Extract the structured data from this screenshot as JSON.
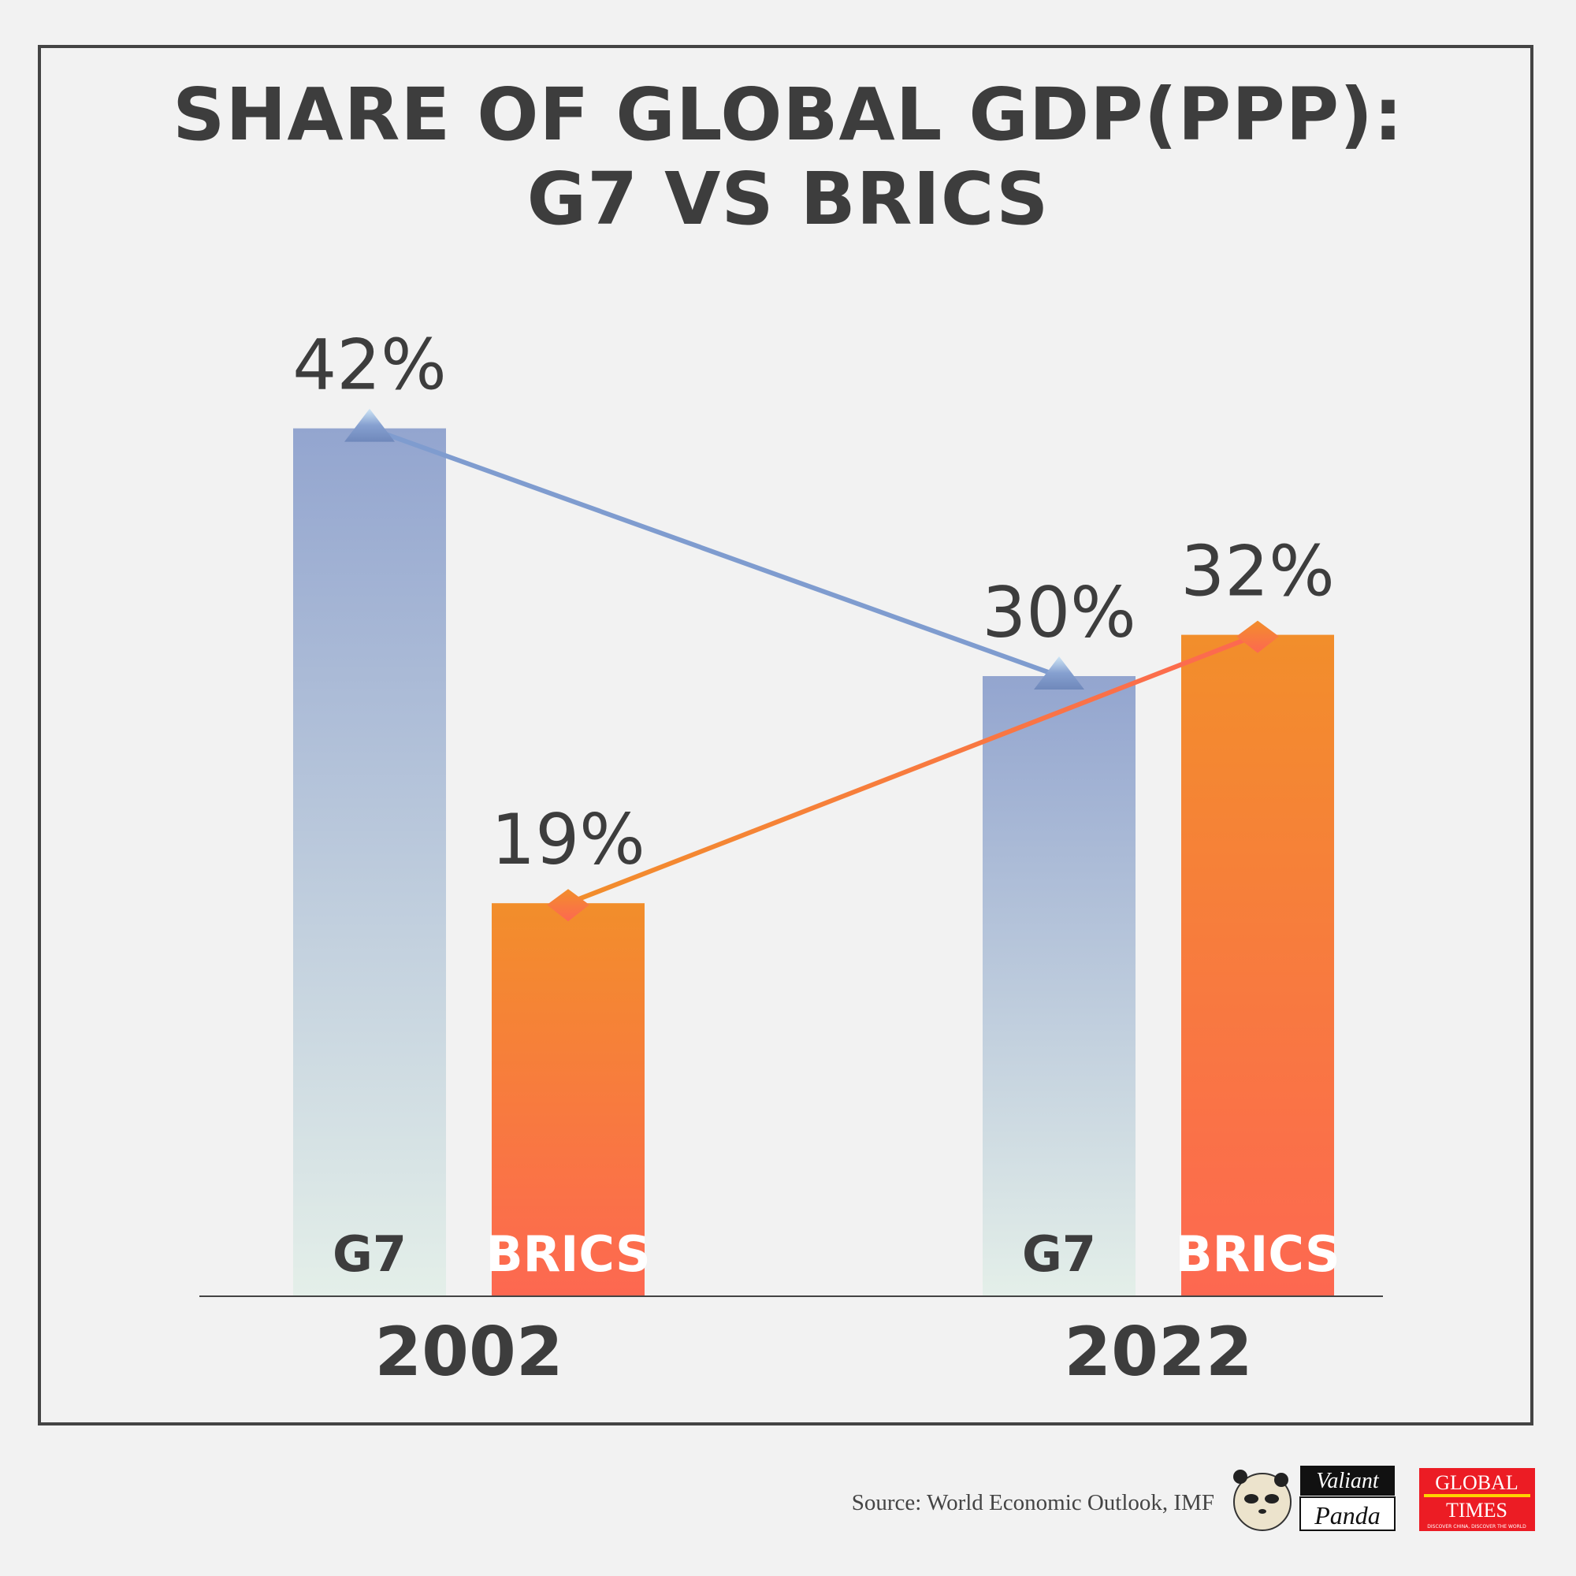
{
  "title_line1": "SHARE OF GLOBAL GDP(PPP):",
  "title_line2": "G7 VS BRICS",
  "source": "Source: World Economic Outlook, IMF",
  "logos": {
    "panda": "Valiant Panda",
    "global_times": "GLOBAL TIMES",
    "global_times_tagline": "DISCOVER CHINA, DISCOVER THE WORLD"
  },
  "colors": {
    "g7": "#93a5cf",
    "brics": "#f28e2b",
    "brics_bottom": "#fd6851",
    "text": "#3d3d3d"
  },
  "chart_data": {
    "type": "bar",
    "title": "SHARE OF GLOBAL GDP(PPP): G7 VS BRICS",
    "categories": [
      "2002",
      "2022"
    ],
    "unit": "%",
    "series": [
      {
        "name": "G7",
        "values": [
          42,
          30
        ],
        "labels": [
          "42%",
          "30%"
        ],
        "marker": "triangle"
      },
      {
        "name": "BRICS",
        "values": [
          19,
          32
        ],
        "labels": [
          "19%",
          "32%"
        ],
        "marker": "diamond"
      }
    ],
    "connecting_lines": true,
    "grid": false
  }
}
